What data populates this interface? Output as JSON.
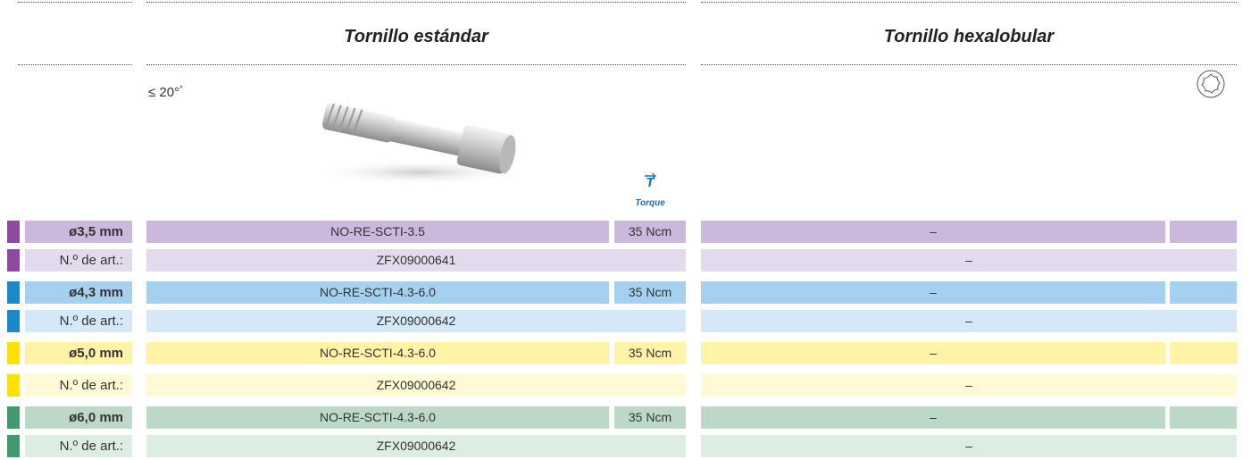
{
  "header": {
    "title_standard": "Tornillo estándar",
    "title_hexalobular": "Tornillo hexalobular",
    "angle": "≤ 20°",
    "angle_note": "*",
    "torque_symbol": "T",
    "torque_label": "Torque"
  },
  "table": {
    "rows": [
      {
        "diameter": "ø3,5 mm",
        "code": "NO-RE-SCTI-3.5",
        "torque": "35 Ncm",
        "hexalobular": "–",
        "art_label": "N.º de art.:",
        "art_number": "ZFX09000641",
        "art_hexalobular": "–"
      },
      {
        "diameter": "ø4,3 mm",
        "code": "NO-RE-SCTI-4.3-6.0",
        "torque": "35 Ncm",
        "hexalobular": "–",
        "art_label": "N.º de art.:",
        "art_number": "ZFX09000642",
        "art_hexalobular": "–"
      },
      {
        "diameter": "ø5,0 mm",
        "code": "NO-RE-SCTI-4.3-6.0",
        "torque": "35 Ncm",
        "hexalobular": "–",
        "art_label": "N.º de art.:",
        "art_number": "ZFX09000642",
        "art_hexalobular": "–"
      },
      {
        "diameter": "ø6,0 mm",
        "code": "NO-RE-SCTI-4.3-6.0",
        "torque": "35 Ncm",
        "hexalobular": "–",
        "art_label": "N.º de art.:",
        "art_number": "ZFX09000642",
        "art_hexalobular": "–"
      }
    ]
  }
}
